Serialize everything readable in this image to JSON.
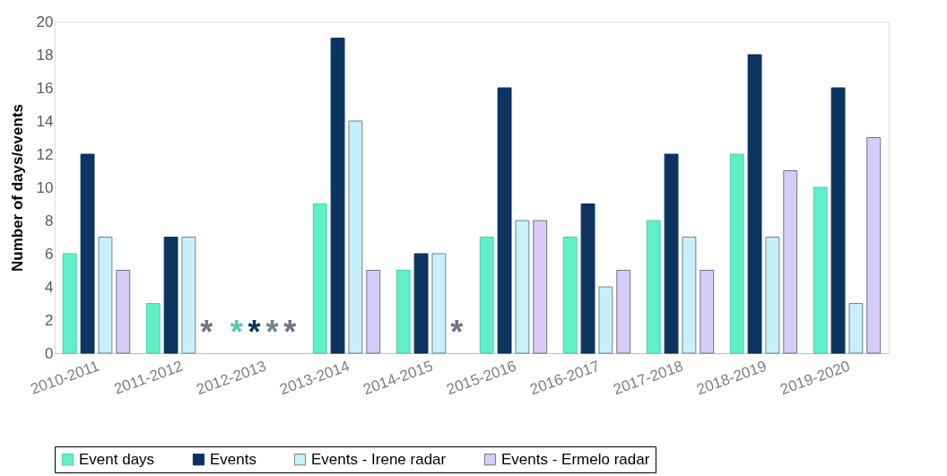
{
  "chart_data": {
    "type": "bar",
    "ylabel": "Number of days/events",
    "categories": [
      "2010-2011",
      "2011-2012",
      "2012-2013",
      "2013-2014",
      "2014-2015",
      "2015-2016",
      "2016-2017",
      "2017-2018",
      "2018-2019",
      "2019-2020"
    ],
    "series": [
      {
        "name": "Event days",
        "color": "#5ff0c8",
        "values": [
          6,
          3,
          null,
          9,
          5,
          7,
          7,
          8,
          12,
          10
        ]
      },
      {
        "name": "Events",
        "color": "#0b3560",
        "values": [
          12,
          7,
          null,
          19,
          6,
          16,
          9,
          12,
          18,
          16
        ]
      },
      {
        "name": "Events - Irene radar",
        "color": "#c8f0fb",
        "values": [
          7,
          7,
          null,
          14,
          6,
          8,
          4,
          7,
          7,
          3
        ]
      },
      {
        "name": "Events - Ermelo radar",
        "color": "#d6cdf7",
        "values": [
          5,
          null,
          null,
          5,
          null,
          8,
          5,
          5,
          11,
          13
        ]
      }
    ],
    "annotations": [
      "*",
      "*",
      "*",
      "*",
      "*",
      "*"
    ],
    "ylim": [
      0,
      20
    ],
    "yticks": [
      0,
      2,
      4,
      6,
      8,
      10,
      12,
      14,
      16,
      18,
      20
    ],
    "grid": false,
    "legend": "bottom"
  }
}
